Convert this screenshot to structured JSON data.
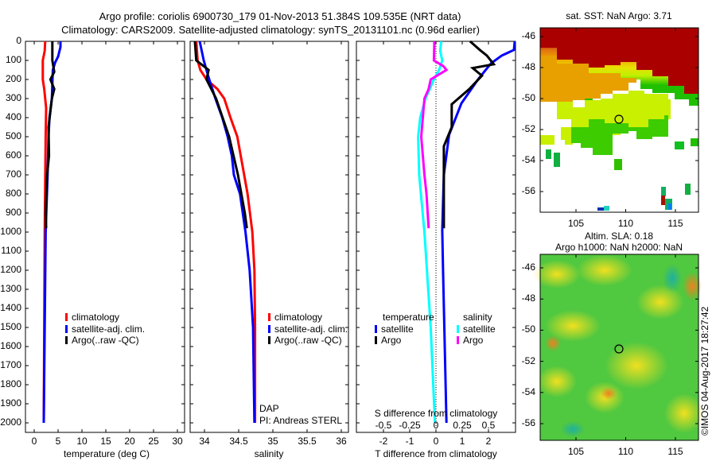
{
  "title_line1": "Argo profile: coriolis 6900730_179 01-Nov-2013 51.384S 109.535E (NRT data)",
  "title_line2": "Climatology: CARS2009. Satellite-adjusted climatology: synTS_20131101.nc (0.96d earlier)",
  "depth_ticks": [
    "0",
    "100",
    "200",
    "300",
    "400",
    "500",
    "600",
    "700",
    "800",
    "900",
    "1000",
    "1100",
    "1200",
    "1300",
    "1400",
    "1500",
    "1600",
    "1700",
    "1800",
    "1900",
    "2000"
  ],
  "colors": {
    "climatology": "#ff0000",
    "satellite": "#0000ff",
    "argo": "#000000",
    "sal_satellite": "#00ffff",
    "sal_argo": "#ff00ff"
  },
  "chart_data": [
    {
      "type": "line",
      "xlabel": "temperature (deg C)",
      "ylabel": "depth",
      "xlim": [
        -1.5,
        31.5
      ],
      "ylim": [
        2050,
        0
      ],
      "xticks": [
        "0",
        "5",
        "10",
        "15",
        "20",
        "25",
        "30"
      ],
      "xtick_values": [
        0,
        5,
        10,
        15,
        20,
        25,
        30
      ],
      "legend": [
        "climatology",
        "satellite-adj. clim.",
        "Argo(..raw -QC)"
      ],
      "series": [
        {
          "name": "climatology",
          "color": "#ff0000",
          "depth": [
            0,
            50,
            100,
            200,
            250,
            350,
            500,
            1000,
            1500,
            2000
          ],
          "values": [
            2.3,
            2.2,
            1.8,
            1.8,
            2.1,
            2.5,
            2.4,
            2.2,
            2.1,
            2.0
          ]
        },
        {
          "name": "satellite-adj. clim.",
          "color": "#0000ff",
          "depth": [
            0,
            30,
            80,
            110,
            150,
            300,
            400,
            500,
            700,
            1000,
            1500,
            2000
          ],
          "values": [
            5.5,
            5.5,
            5.0,
            4.4,
            3.9,
            3.7,
            3.2,
            3.0,
            2.8,
            2.4,
            2.2,
            2.0
          ]
        },
        {
          "name": "Argo(..raw -QC)",
          "color": "#000000",
          "depth": [
            0,
            100,
            160,
            200,
            250,
            300,
            450,
            600,
            700,
            900,
            980
          ],
          "values": [
            3.8,
            3.8,
            4.2,
            3.4,
            4.2,
            3.7,
            3.0,
            3.1,
            2.7,
            2.4,
            2.5
          ]
        }
      ]
    },
    {
      "type": "line",
      "xlabel": "salinity",
      "xlim": [
        33.78,
        36.1
      ],
      "ylim": [
        2050,
        0
      ],
      "xticks": [
        "34",
        "34.5",
        "35",
        "35.5",
        "36"
      ],
      "xtick_values": [
        34,
        34.5,
        35,
        35.5,
        36
      ],
      "legend": [
        "climatology",
        "satellite-adj. clim.",
        "Argo(..raw -QC)"
      ],
      "annotations": [
        "DAP",
        "PI: Andreas STERL"
      ],
      "series": [
        {
          "name": "climatology",
          "color": "#ff0000",
          "depth": [
            0,
            100,
            150,
            200,
            250,
            300,
            400,
            500,
            600,
            700,
            800,
            1000,
            1200,
            1500,
            2000
          ],
          "values": [
            33.88,
            33.9,
            33.94,
            34.03,
            34.19,
            34.29,
            34.38,
            34.48,
            34.53,
            34.58,
            34.63,
            34.7,
            34.73,
            34.74,
            34.74
          ]
        },
        {
          "name": "satellite-adj. clim.",
          "color": "#0000ff",
          "depth": [
            0,
            100,
            200,
            300,
            400,
            500,
            600,
            700,
            800,
            1000,
            1200,
            1500,
            2000
          ],
          "values": [
            33.93,
            33.99,
            34.07,
            34.16,
            34.26,
            34.34,
            34.4,
            34.43,
            34.52,
            34.6,
            34.66,
            34.71,
            34.73
          ]
        },
        {
          "name": "Argo(..raw -QC)",
          "color": "#000000",
          "depth": [
            0,
            100,
            150,
            200,
            300,
            500,
            700,
            900,
            980
          ],
          "values": [
            33.86,
            33.88,
            34.06,
            34.03,
            34.17,
            34.36,
            34.49,
            34.59,
            34.62
          ]
        }
      ]
    },
    {
      "type": "line",
      "xlabel": "T difference from climatology",
      "x2label": "S difference from climatology",
      "xlim": [
        -3,
        3.05
      ],
      "ylim": [
        2050,
        0
      ],
      "xticks": [
        "-2",
        "-1",
        "0",
        "1",
        "2"
      ],
      "xtick_values": [
        -2,
        -1,
        0,
        1,
        2
      ],
      "x2ticks": [
        "-0.5",
        "-0.25",
        "0",
        "0.25",
        "0.5"
      ],
      "x2tick_values": [
        -0.5,
        -0.25,
        0,
        0.25,
        0.5
      ],
      "legend_temperature": {
        "header": "temperature",
        "items": [
          "satellite",
          "Argo"
        ]
      },
      "legend_salinity": {
        "header": "salinity",
        "items": [
          "satellite",
          "Argo"
        ]
      },
      "series": [
        {
          "name": "temperature satellite",
          "axis": "T",
          "color": "#0000ff",
          "depth": [
            0,
            45,
            75,
            115,
            200,
            325,
            490,
            700,
            990,
            1200,
            2000
          ],
          "values": [
            3.0,
            2.97,
            2.5,
            2.1,
            1.6,
            0.97,
            0.5,
            0.3,
            0.24,
            0.27,
            0.4
          ]
        },
        {
          "name": "temperature Argo",
          "axis": "T",
          "color": "#000000",
          "depth": [
            0,
            45,
            75,
            120,
            140,
            180,
            250,
            330,
            450,
            550,
            700,
            980
          ],
          "values": [
            1.3,
            1.67,
            1.94,
            2.2,
            1.4,
            1.75,
            1.27,
            0.6,
            0.6,
            0.3,
            0.3,
            0.3
          ]
        },
        {
          "name": "salinity satellite",
          "axis": "S",
          "color": "#00ffff",
          "depth": [
            0,
            50,
            100,
            150,
            200,
            300,
            400,
            500,
            700,
            1000,
            1500,
            2000
          ],
          "values": [
            0.05,
            0.04,
            0.06,
            0.03,
            -0.02,
            -0.1,
            -0.15,
            -0.17,
            -0.16,
            -0.11,
            -0.05,
            -0.01
          ]
        },
        {
          "name": "salinity Argo",
          "axis": "S",
          "color": "#ff00ff",
          "depth": [
            0,
            100,
            130,
            150,
            200,
            250,
            300,
            500,
            700,
            800,
            980
          ],
          "values": [
            -0.015,
            -0.02,
            0.07,
            0.1,
            -0.05,
            -0.07,
            -0.11,
            -0.14,
            -0.11,
            -0.09,
            -0.07
          ]
        }
      ]
    }
  ],
  "map_sst": {
    "title": "sat. SST: NaN Argo: 3.71",
    "lat_ticks": [
      "-46",
      "-48",
      "-50",
      "-52",
      "-54",
      "-56"
    ],
    "lon_ticks": [
      "105",
      "110",
      "115"
    ],
    "marker": {
      "lon": 109.535,
      "lat": -51.384
    }
  },
  "map_sla": {
    "title_line1": "Altim. SLA: 0.18",
    "title_line2": "Argo h1000: NaN h2000: NaN",
    "lat_ticks": [
      "-46",
      "-48",
      "-50",
      "-52",
      "-54",
      "-56"
    ],
    "lon_ticks": [
      "105",
      "110",
      "115"
    ],
    "marker": {
      "lon": 109.535,
      "lat": -51.384
    }
  },
  "credit": "©IMOS 04-Aug-2017 18:27:42"
}
